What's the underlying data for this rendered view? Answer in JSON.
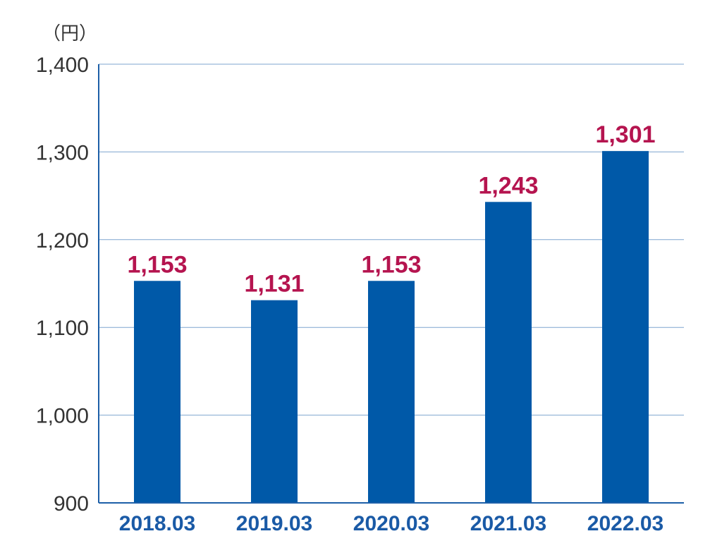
{
  "chart_data": {
    "type": "bar",
    "categories": [
      "2018.03",
      "2019.03",
      "2020.03",
      "2021.03",
      "2022.03"
    ],
    "values": [
      1153,
      1131,
      1153,
      1243,
      1301
    ],
    "data_labels": [
      "1,153",
      "1,131",
      "1,153",
      "1,243",
      "1,301"
    ],
    "unit_label": "（円）",
    "ylim": [
      900,
      1400
    ],
    "yticks": [
      900,
      1000,
      1100,
      1200,
      1300,
      1400
    ],
    "ytick_labels": [
      "900",
      "1,000",
      "1,100",
      "1,200",
      "1,300",
      "1,400"
    ],
    "grid": true,
    "colors": {
      "bar": "#0059a8",
      "data_label": "#b5144f",
      "x_tick": "#1a5aa6",
      "grid": "#7fa6cf",
      "axis": "#1d5fa8"
    }
  }
}
